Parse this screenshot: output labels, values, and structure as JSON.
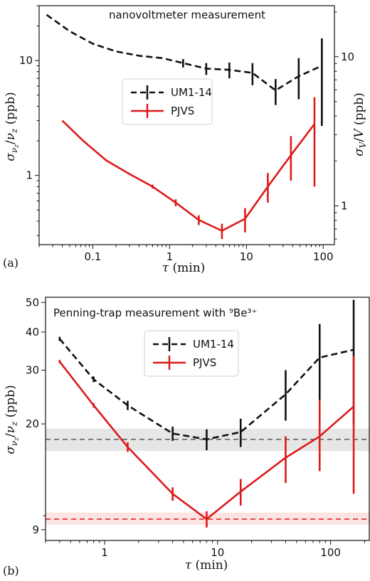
{
  "colors": {
    "um": "#111111",
    "pjvs": "#dd1a1a",
    "gray_band": "#e6e6e6",
    "gray_line": "#666666",
    "red_band": "#fde3e3",
    "red_line": "#dd1a1a"
  },
  "chart_data": [
    {
      "type": "line",
      "panel": "(a)",
      "annotation": "nanovoltmeter measurement",
      "xlabel": "τ (min)",
      "ylabel": "σνz/νz (ppb)",
      "y2label": "σV/V (ppb)",
      "xscale": "log",
      "yscale": "log",
      "xlim": [
        0.02,
        140
      ],
      "ylim": [
        0.25,
        30
      ],
      "xticks": [
        0.1,
        1,
        10,
        100
      ],
      "xtick_labels": [
        "0.1",
        "1",
        "10",
        "100"
      ],
      "yticks": [
        1,
        10
      ],
      "ytick_labels": [
        "1",
        "10"
      ],
      "y2ticks": [
        1,
        10
      ],
      "y2tick_labels": [
        "1",
        "10"
      ],
      "legend": [
        "UM1-14",
        "PJVS"
      ],
      "legend_position": "center",
      "series": [
        {
          "name": "UM1-14",
          "style": "dashed",
          "x": [
            0.025,
            0.05,
            0.1,
            0.2,
            0.4,
            0.8,
            1.5,
            3,
            6,
            12,
            24,
            48,
            96
          ],
          "y": [
            25,
            18,
            14,
            12,
            11,
            10.5,
            9.5,
            8.5,
            8.3,
            7.8,
            5.5,
            7.3,
            9
          ],
          "err_low": [
            0,
            0,
            0,
            0,
            0,
            0,
            0.8,
            1.0,
            1.3,
            1.7,
            1.4,
            2.7,
            6.3
          ],
          "err_high": [
            0,
            0,
            0,
            0,
            0,
            0,
            0.8,
            1.0,
            1.3,
            1.7,
            1.4,
            3.2,
            6.6
          ]
        },
        {
          "name": "PJVS",
          "style": "solid",
          "x": [
            0.04,
            0.075,
            0.15,
            0.3,
            0.6,
            1.2,
            2.4,
            4.8,
            9.6,
            19,
            38,
            77
          ],
          "y": [
            3.0,
            2.0,
            1.35,
            1.03,
            0.8,
            0.58,
            0.41,
            0.33,
            0.42,
            0.8,
            1.5,
            2.8
          ],
          "err_low": [
            0,
            0,
            0,
            0,
            0.03,
            0.04,
            0.04,
            0.05,
            0.1,
            0.22,
            0.6,
            2.0
          ],
          "err_high": [
            0,
            0,
            0,
            0,
            0.03,
            0.04,
            0.04,
            0.05,
            0.1,
            0.25,
            0.7,
            2.0
          ]
        }
      ]
    },
    {
      "type": "line",
      "panel": "(b)",
      "annotation": "Penning-trap measurement with ⁹Be³⁺",
      "xlabel": "τ (min)",
      "ylabel": "σνz/νz (ppb)",
      "xscale": "log",
      "yscale": "log",
      "xlim": [
        0.3,
        220
      ],
      "ylim": [
        8.3,
        52
      ],
      "xticks": [
        1,
        10,
        100
      ],
      "xtick_labels": [
        "1",
        "10",
        "100"
      ],
      "yticks": [
        9,
        20,
        30,
        40,
        50
      ],
      "ytick_labels": [
        "9",
        "20",
        "30",
        "40",
        "50"
      ],
      "legend": [
        "UM1-14",
        "PJVS"
      ],
      "legend_position": "top-center",
      "hlines": [
        {
          "y": 17.8,
          "band": [
            16.3,
            19.3
          ],
          "color": "gray"
        },
        {
          "y": 9.75,
          "band": [
            9.35,
            10.25
          ],
          "color": "red"
        }
      ],
      "series": [
        {
          "name": "UM1-14",
          "style": "dashed",
          "x": [
            0.4,
            0.8,
            1.6,
            4,
            8,
            16,
            40,
            80,
            160
          ],
          "y": [
            38,
            28,
            23,
            18.6,
            17.8,
            18.8,
            25,
            33,
            35
          ],
          "err_low": [
            0.6,
            0.6,
            0.8,
            1.0,
            1.4,
            2.0,
            4.5,
            9.0,
            15.0
          ],
          "err_high": [
            0.6,
            0.6,
            0.8,
            1.0,
            1.4,
            2.0,
            5.0,
            9.5,
            16.0
          ]
        },
        {
          "name": "PJVS",
          "style": "solid",
          "x": [
            0.4,
            0.8,
            1.6,
            4,
            8,
            16,
            40,
            80,
            160
          ],
          "y": [
            32,
            23,
            16.8,
            11.8,
            9.75,
            12.0,
            15.5,
            18.2,
            22.8
          ],
          "err_low": [
            0.4,
            0.4,
            0.6,
            0.6,
            0.6,
            1.2,
            2.7,
            4.2,
            11.0
          ],
          "err_high": [
            0.4,
            0.4,
            0.6,
            0.6,
            0.6,
            1.2,
            2.7,
            5.8,
            10.5
          ]
        }
      ]
    }
  ]
}
